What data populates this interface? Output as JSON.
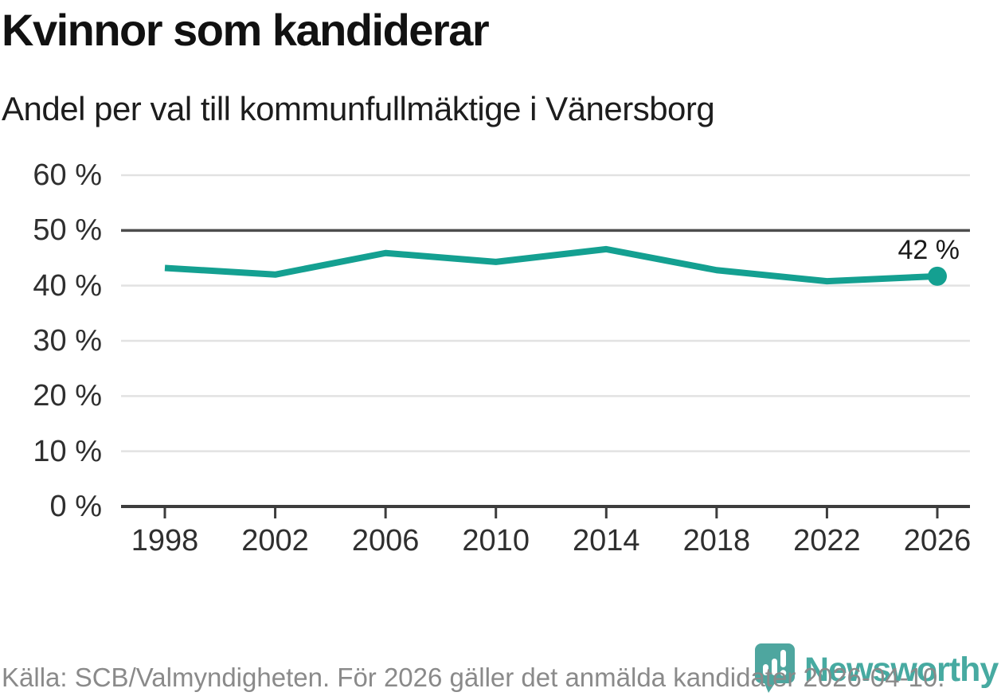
{
  "title": "Kvinnor som kandiderar",
  "subtitle": "Andel per val till kommunfullmäktige i Vänersborg",
  "footer": {
    "source_text": "Källa: SCB/Valmyndigheten. För 2026 gäller det anmälda kandidater 2026-04-10.",
    "brand_name": "Newsworthy"
  },
  "colors": {
    "line": "#14a091",
    "point": "#14a091",
    "grid": "#e2e2e2",
    "grid_emphasis": "#4d4d4d",
    "axis": "#3d3d3d",
    "text_dark": "#1a1a1a",
    "text_muted": "#8a8a8a",
    "brand_teal": "#3f9f97"
  },
  "chart_data": {
    "type": "line",
    "title": "Kvinnor som kandiderar",
    "subtitle": "Andel per val till kommunfullmäktige i Vänersborg",
    "x": [
      1998,
      2002,
      2006,
      2010,
      2014,
      2018,
      2022,
      2026
    ],
    "values": [
      43.2,
      42.0,
      45.9,
      44.3,
      46.6,
      42.8,
      40.8,
      41.7
    ],
    "end_label": "42 %",
    "ylabel": "",
    "xlabel": "",
    "unit": "%",
    "ylim": [
      0,
      60
    ],
    "ytick_step": 10,
    "ytick_labels": [
      "0 %",
      "10 %",
      "20 %",
      "30 %",
      "40 %",
      "50 %",
      "60 %"
    ],
    "emphasized_gridline": 50,
    "grid": true,
    "legend": false
  }
}
